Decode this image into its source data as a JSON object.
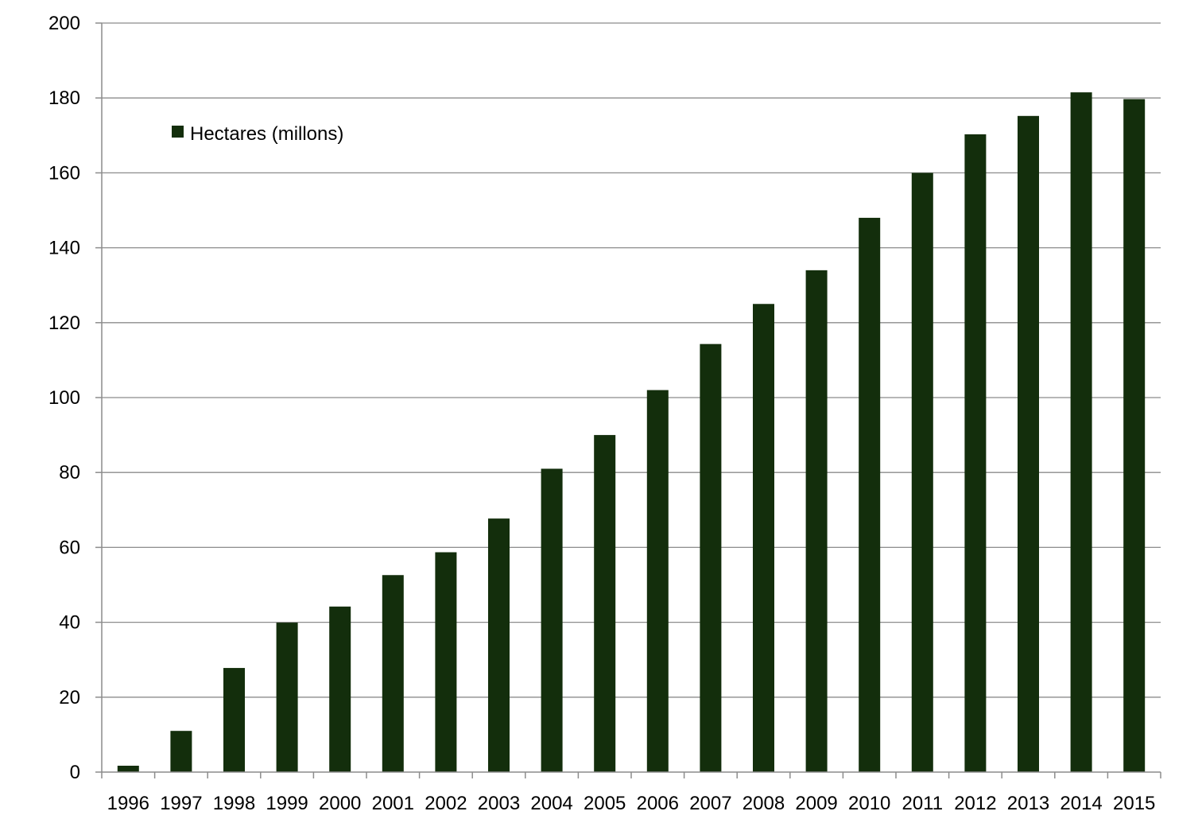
{
  "chart_data": {
    "type": "bar",
    "categories": [
      "1996",
      "1997",
      "1998",
      "1999",
      "2000",
      "2001",
      "2002",
      "2003",
      "2004",
      "2005",
      "2006",
      "2007",
      "2008",
      "2009",
      "2010",
      "2011",
      "2012",
      "2013",
      "2014",
      "2015"
    ],
    "series": [
      {
        "name": "Hectares (millons)",
        "color": "#132e0c",
        "values": [
          1.7,
          11,
          27.8,
          39.9,
          44.2,
          52.6,
          58.7,
          67.7,
          81,
          90,
          102,
          114.3,
          125,
          134,
          148,
          160,
          170.3,
          175.2,
          181.5,
          179.7
        ]
      }
    ],
    "ylim": [
      0,
      200
    ],
    "yticks": [
      0,
      20,
      40,
      60,
      80,
      100,
      120,
      140,
      160,
      180,
      200
    ],
    "grid": true,
    "legend_position": "top-left",
    "title": "",
    "xlabel": "",
    "ylabel": ""
  }
}
